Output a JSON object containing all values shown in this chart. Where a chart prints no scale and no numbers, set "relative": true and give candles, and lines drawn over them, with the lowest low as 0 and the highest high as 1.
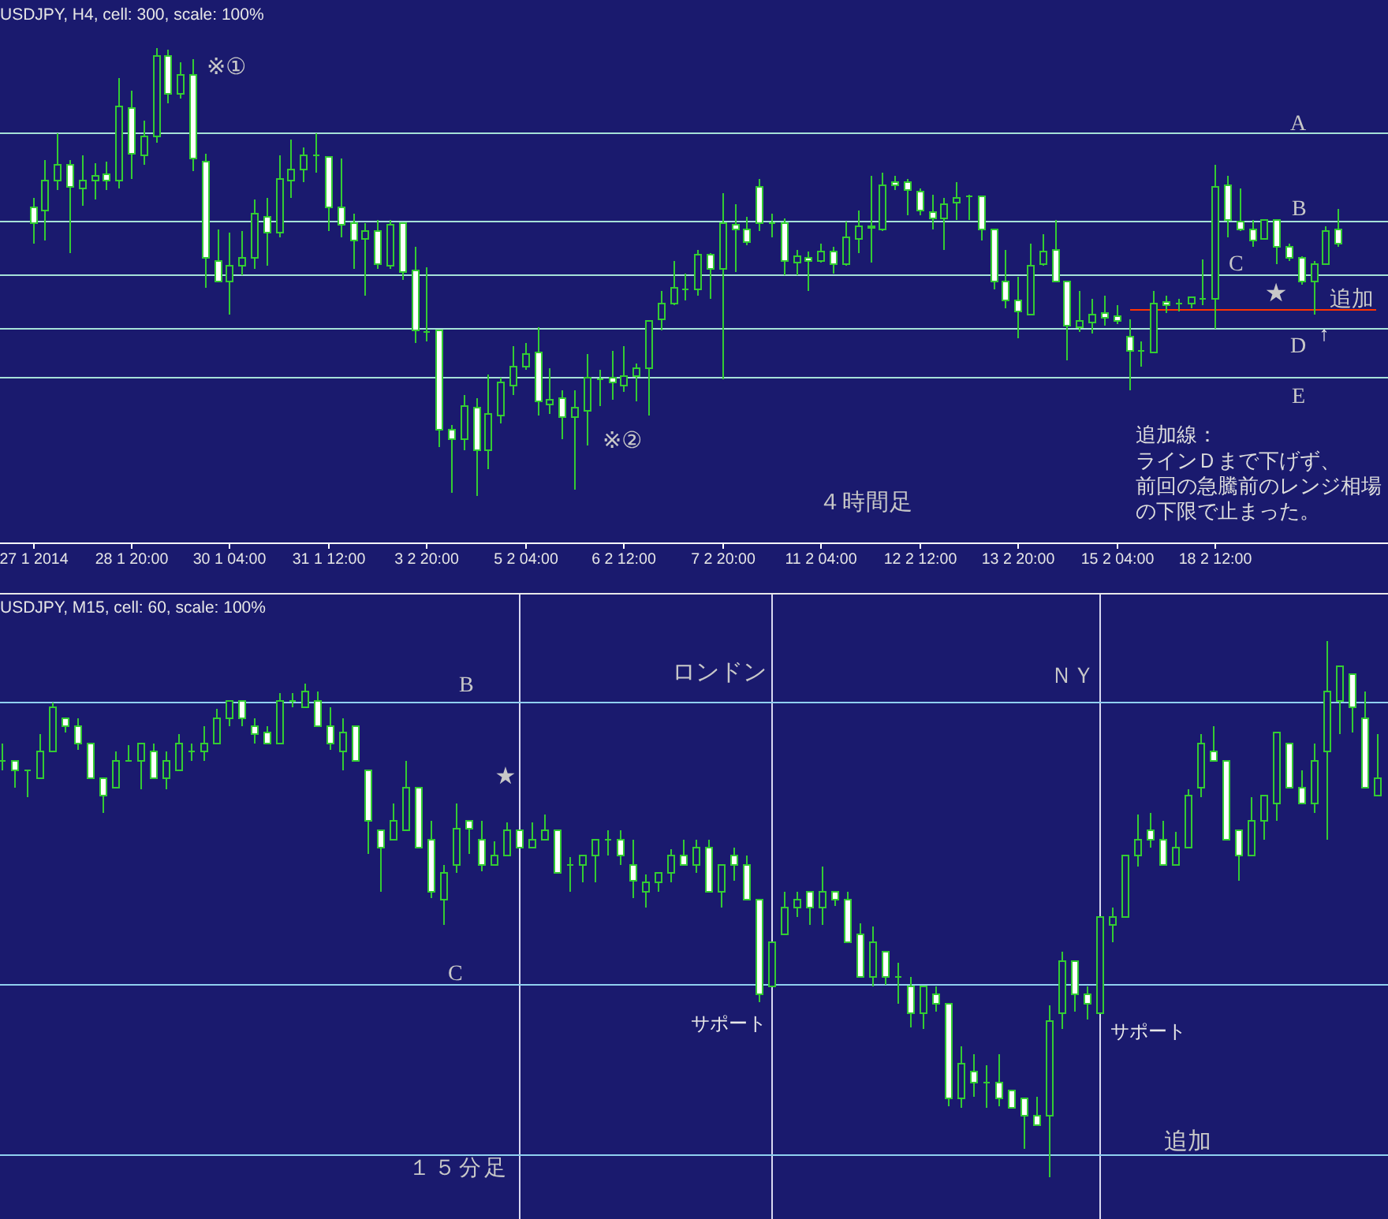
{
  "chart_data": [
    {
      "type": "candlestick",
      "title": "USDJPY, H4, cell: 300, scale: 100%",
      "relative": true,
      "color": "#33cc33",
      "tick_labels": "x",
      "categories": [
        "27 1 2014",
        null,
        null,
        null,
        null,
        null,
        null,
        null,
        "28 1 20:00",
        null,
        null,
        null,
        null,
        null,
        null,
        null,
        "30 1 04:00",
        null,
        null,
        null,
        null,
        null,
        null,
        null,
        "31 1 12:00",
        null,
        null,
        null,
        null,
        null,
        null,
        null,
        "3 2 20:00",
        null,
        null,
        null,
        null,
        null,
        null,
        null,
        "5 2 04:00",
        null,
        null,
        null,
        null,
        null,
        null,
        null,
        "6 2 12:00",
        null,
        null,
        null,
        null,
        null,
        null,
        null,
        "7 2 20:00",
        null,
        null,
        null,
        null,
        null,
        null,
        null,
        "11 2 04:00",
        null,
        null,
        null,
        null,
        null,
        null,
        null,
        "12 2 12:00",
        null,
        null,
        null,
        null,
        null,
        null,
        null,
        "13 2 20:00",
        null,
        null,
        null,
        null,
        null,
        null,
        null,
        "15 2 04:00",
        null,
        null,
        null,
        null,
        null,
        null,
        null,
        "18 2 12:00",
        null,
        null,
        null,
        null,
        null,
        null,
        null,
        null,
        null,
        null,
        null,
        null,
        null
      ],
      "ohlc": [
        [
          0.643,
          0.663,
          0.564,
          0.608
        ],
        [
          0.637,
          0.748,
          0.569,
          0.704
        ],
        [
          0.704,
          0.807,
          0.681,
          0.739
        ],
        [
          0.739,
          0.748,
          0.541,
          0.69
        ],
        [
          0.686,
          0.76,
          0.646,
          0.704
        ],
        [
          0.704,
          0.742,
          0.66,
          0.713
        ],
        [
          0.718,
          0.746,
          0.681,
          0.704
        ],
        [
          0.704,
          0.93,
          0.686,
          0.869
        ],
        [
          0.865,
          0.904,
          0.707,
          0.763
        ],
        [
          0.76,
          0.838,
          0.737,
          0.801
        ],
        [
          0.803,
          1.0,
          0.789,
          0.979
        ],
        [
          0.979,
          0.996,
          0.875,
          0.897
        ],
        [
          0.897,
          0.967,
          0.885,
          0.939
        ],
        [
          0.939,
          0.973,
          0.725,
          0.751
        ],
        [
          0.746,
          0.763,
          0.464,
          0.532
        ],
        [
          0.525,
          0.596,
          0.477,
          0.479
        ],
        [
          0.479,
          0.588,
          0.403,
          0.514
        ],
        [
          0.514,
          0.59,
          0.494,
          0.532
        ],
        [
          0.532,
          0.66,
          0.506,
          0.628
        ],
        [
          0.623,
          0.666,
          0.514,
          0.588
        ],
        [
          0.588,
          0.758,
          0.576,
          0.707
        ],
        [
          0.704,
          0.793,
          0.664,
          0.728
        ],
        [
          0.728,
          0.778,
          0.701,
          0.76
        ],
        [
          0.759,
          0.807,
          0.719,
          0.76
        ],
        [
          0.756,
          0.756,
          0.59,
          0.643
        ],
        [
          0.643,
          0.751,
          0.576,
          0.605
        ],
        [
          0.608,
          0.628,
          0.506,
          0.57
        ],
        [
          0.573,
          0.608,
          0.446,
          0.59
        ],
        [
          0.59,
          0.616,
          0.506,
          0.518
        ],
        [
          0.512,
          0.614,
          0.506,
          0.605
        ],
        [
          0.608,
          0.608,
          0.482,
          0.5
        ],
        [
          0.502,
          0.555,
          0.341,
          0.368
        ],
        [
          0.367,
          0.511,
          0.344,
          0.365
        ],
        [
          0.37,
          0.37,
          0.108,
          0.148
        ],
        [
          0.148,
          0.16,
          0.007,
          0.128
        ],
        [
          0.128,
          0.227,
          0.101,
          0.201
        ],
        [
          0.198,
          0.219,
          0.0,
          0.101
        ],
        [
          0.102,
          0.272,
          0.06,
          0.184
        ],
        [
          0.18,
          0.265,
          0.163,
          0.254
        ],
        [
          0.247,
          0.333,
          0.225,
          0.289
        ],
        [
          0.289,
          0.342,
          0.282,
          0.317
        ],
        [
          0.321,
          0.377,
          0.18,
          0.21
        ],
        [
          0.206,
          0.286,
          0.184,
          0.215
        ],
        [
          0.219,
          0.237,
          0.128,
          0.177
        ],
        [
          0.177,
          0.237,
          0.014,
          0.198
        ],
        [
          0.19,
          0.317,
          0.112,
          0.265
        ],
        [
          0.261,
          0.282,
          0.201,
          0.262
        ],
        [
          0.265,
          0.324,
          0.215,
          0.254
        ],
        [
          0.247,
          0.333,
          0.233,
          0.268
        ],
        [
          0.266,
          0.295,
          0.212,
          0.286
        ],
        [
          0.286,
          0.391,
          0.18,
          0.391
        ],
        [
          0.395,
          0.456,
          0.37,
          0.43
        ],
        [
          0.43,
          0.523,
          0.426,
          0.465
        ],
        [
          0.46,
          0.496,
          0.436,
          0.461
        ],
        [
          0.461,
          0.547,
          0.446,
          0.537
        ],
        [
          0.537,
          0.543,
          0.441,
          0.506
        ],
        [
          0.506,
          0.676,
          0.262,
          0.61
        ],
        [
          0.605,
          0.652,
          0.499,
          0.594
        ],
        [
          0.593,
          0.623,
          0.559,
          0.566
        ],
        [
          0.69,
          0.705,
          0.59,
          0.608
        ],
        [
          0.609,
          0.631,
          0.578,
          0.61
        ],
        [
          0.61,
          0.619,
          0.491,
          0.523
        ],
        [
          0.52,
          0.549,
          0.491,
          0.535
        ],
        [
          0.532,
          0.546,
          0.459,
          0.523
        ],
        [
          0.523,
          0.561,
          0.52,
          0.546
        ],
        [
          0.546,
          0.557,
          0.496,
          0.516
        ],
        [
          0.516,
          0.611,
          0.512,
          0.575
        ],
        [
          0.573,
          0.635,
          0.543,
          0.602
        ],
        [
          0.598,
          0.715,
          0.52,
          0.6
        ],
        [
          0.594,
          0.722,
          0.59,
          0.693
        ],
        [
          0.7,
          0.715,
          0.681,
          0.693
        ],
        [
          0.7,
          0.705,
          0.625,
          0.681
        ],
        [
          0.679,
          0.684,
          0.625,
          0.637
        ],
        [
          0.633,
          0.672,
          0.594,
          0.619
        ],
        [
          0.619,
          0.663,
          0.547,
          0.651
        ],
        [
          0.655,
          0.701,
          0.614,
          0.666
        ],
        [
          0.667,
          0.672,
          0.614,
          0.669
        ],
        [
          0.669,
          0.669,
          0.569,
          0.593
        ],
        [
          0.593,
          0.593,
          0.461,
          0.479
        ],
        [
          0.479,
          0.547,
          0.42,
          0.436
        ],
        [
          0.436,
          0.488,
          0.352,
          0.412
        ],
        [
          0.406,
          0.564,
          0.403,
          0.514
        ],
        [
          0.518,
          0.584,
          0.514,
          0.546
        ],
        [
          0.549,
          0.617,
          0.479,
          0.479
        ],
        [
          0.479,
          0.479,
          0.301,
          0.379
        ],
        [
          0.377,
          0.456,
          0.365,
          0.391
        ],
        [
          0.388,
          0.441,
          0.362,
          0.405
        ],
        [
          0.409,
          0.447,
          0.379,
          0.399
        ],
        [
          0.402,
          0.426,
          0.383,
          0.391
        ],
        [
          0.356,
          0.395,
          0.235,
          0.324
        ],
        [
          0.323,
          0.344,
          0.289,
          0.324
        ],
        [
          0.321,
          0.456,
          0.321,
          0.43
        ],
        [
          0.432,
          0.447,
          0.409,
          0.426
        ],
        [
          0.429,
          0.441,
          0.412,
          0.43
        ],
        [
          0.43,
          0.444,
          0.418,
          0.444
        ],
        [
          0.44,
          0.526,
          0.426,
          0.441
        ],
        [
          0.441,
          0.737,
          0.374,
          0.69
        ],
        [
          0.693,
          0.715,
          0.578,
          0.614
        ],
        [
          0.611,
          0.687,
          0.59,
          0.594
        ],
        [
          0.596,
          0.614,
          0.555,
          0.57
        ],
        [
          0.573,
          0.616,
          0.573,
          0.616
        ],
        [
          0.614,
          0.616,
          0.518,
          0.557
        ],
        [
          0.557,
          0.564,
          0.523,
          0.532
        ],
        [
          0.532,
          0.535,
          0.471,
          0.479
        ],
        [
          0.479,
          0.523,
          0.403,
          0.518
        ],
        [
          0.518,
          0.6,
          0.518,
          0.59
        ],
        [
          0.593,
          0.639,
          0.555,
          0.563
        ],
        null,
        null,
        null
      ],
      "series": [
        {
          "type": "line",
          "color": "#ff3300",
          "values": [
            null,
            null,
            null,
            null,
            null,
            null,
            null,
            null,
            null,
            null,
            null,
            null,
            null,
            null,
            null,
            null,
            null,
            null,
            null,
            null,
            null,
            null,
            null,
            null,
            null,
            null,
            null,
            null,
            null,
            null,
            null,
            null,
            null,
            null,
            null,
            null,
            null,
            null,
            null,
            null,
            null,
            null,
            null,
            null,
            null,
            null,
            null,
            null,
            null,
            null,
            null,
            null,
            null,
            null,
            null,
            null,
            null,
            null,
            null,
            null,
            null,
            null,
            null,
            null,
            null,
            null,
            null,
            null,
            null,
            null,
            null,
            null,
            null,
            null,
            null,
            null,
            null,
            null,
            null,
            null,
            null,
            null,
            null,
            null,
            null,
            null,
            null,
            null,
            null,
            0.416,
            0.416,
            0.416,
            0.416,
            0.416,
            0.416,
            0.416,
            0.416,
            0.416,
            0.416,
            0.416,
            0.416,
            0.416,
            0.416,
            0.416,
            0.416,
            0.416,
            0.416,
            0.416,
            0.416,
            0.416
          ]
        }
      ],
      "ref_lines": [
        {
          "axis": "y",
          "value": 0.809,
          "label": "A",
          "color": "#a6e1d8"
        },
        {
          "axis": "y",
          "value": 0.612,
          "label": "B",
          "color": "#a6e1d8"
        },
        {
          "axis": "y",
          "value": 0.491,
          "label": "C",
          "color": "#a6e1d8"
        },
        {
          "axis": "y",
          "value": 0.374,
          "label": "D",
          "color": "#a6e1d8"
        },
        {
          "axis": "y",
          "value": 0.265,
          "label": "E",
          "color": "#a6e1d8"
        }
      ],
      "annotations": [
        "※①",
        "※②",
        "★",
        "↑",
        "４時間足",
        "追加線：",
        "ラインＤまで下げず、",
        "前回の急騰前のレンジ相場",
        "の下限で止まった。",
        {
          "text": "追加",
          "y": 0.416
        }
      ]
    },
    {
      "type": "candlestick",
      "title": "USDJPY, M15, cell: 60, scale: 100%",
      "relative": true,
      "color": "#33cc33",
      "tick_labels": false,
      "grid": "x",
      "categories": [
        null,
        null,
        null,
        null,
        null,
        null,
        null,
        null,
        null,
        null,
        null,
        null,
        null,
        null,
        null,
        null,
        null,
        null,
        null,
        null,
        null,
        null,
        null,
        null,
        null,
        null,
        null,
        null,
        null,
        null,
        null,
        null,
        null,
        null,
        null,
        null,
        null,
        null,
        null,
        null,
        null,
        null,
        null,
        null,
        null,
        null,
        null,
        null,
        null,
        null,
        null,
        null,
        null,
        null,
        null,
        null,
        null,
        null,
        null,
        null,
        null,
        null,
        null,
        null,
        null,
        null,
        null,
        null,
        null,
        null,
        null,
        null,
        null,
        null,
        null,
        null,
        null,
        null,
        null,
        null,
        null,
        null,
        null,
        null,
        null,
        null,
        null,
        null,
        null,
        null,
        null,
        null,
        null,
        null,
        null,
        null,
        null,
        null,
        null,
        null,
        null,
        null,
        null,
        null,
        null,
        null,
        null,
        null,
        null,
        null
      ],
      "ohlc": [
        [
          0.775,
          0.807,
          0.758,
          0.776
        ],
        [
          0.776,
          0.776,
          0.727,
          0.758
        ],
        [
          0.758,
          0.758,
          0.709,
          0.758
        ],
        [
          0.744,
          0.825,
          0.744,
          0.793
        ],
        [
          0.793,
          0.884,
          0.793,
          0.874
        ],
        [
          0.856,
          0.856,
          0.827,
          0.841
        ],
        [
          0.841,
          0.856,
          0.795,
          0.807
        ],
        [
          0.807,
          0.807,
          0.744,
          0.744
        ],
        [
          0.744,
          0.744,
          0.68,
          0.711
        ],
        [
          0.726,
          0.793,
          0.726,
          0.776
        ],
        [
          0.775,
          0.805,
          0.775,
          0.776
        ],
        [
          0.776,
          0.807,
          0.724,
          0.807
        ],
        [
          0.793,
          0.807,
          0.744,
          0.744
        ],
        [
          0.744,
          0.793,
          0.724,
          0.776
        ],
        [
          0.758,
          0.825,
          0.758,
          0.807
        ],
        [
          0.792,
          0.807,
          0.776,
          0.793
        ],
        [
          0.793,
          0.839,
          0.776,
          0.807
        ],
        [
          0.807,
          0.871,
          0.807,
          0.856
        ],
        [
          0.856,
          0.887,
          0.839,
          0.887
        ],
        [
          0.887,
          0.887,
          0.841,
          0.856
        ],
        [
          0.841,
          0.856,
          0.809,
          0.825
        ],
        [
          0.827,
          0.841,
          0.807,
          0.807
        ],
        [
          0.807,
          0.902,
          0.807,
          0.887
        ],
        [
          0.886,
          0.902,
          0.874,
          0.887
        ],
        [
          0.874,
          0.92,
          0.874,
          0.905
        ],
        [
          0.887,
          0.905,
          0.841,
          0.841
        ],
        [
          0.841,
          0.874,
          0.795,
          0.807
        ],
        [
          0.793,
          0.854,
          0.758,
          0.827
        ],
        [
          0.841,
          0.841,
          0.776,
          0.776
        ],
        [
          0.758,
          0.758,
          0.602,
          0.663
        ],
        [
          0.646,
          0.646,
          0.533,
          0.614
        ],
        [
          0.629,
          0.695,
          0.629,
          0.663
        ],
        [
          0.646,
          0.775,
          0.646,
          0.726
        ],
        [
          0.726,
          0.726,
          0.614,
          0.614
        ],
        [
          0.629,
          0.665,
          0.519,
          0.531
        ],
        [
          0.517,
          0.582,
          0.47,
          0.568
        ],
        [
          0.582,
          0.695,
          0.568,
          0.648
        ],
        [
          0.663,
          0.663,
          0.602,
          0.648
        ],
        [
          0.629,
          0.663,
          0.57,
          0.582
        ],
        [
          0.582,
          0.626,
          0.582,
          0.6
        ],
        [
          0.6,
          0.662,
          0.6,
          0.646
        ],
        [
          0.646,
          0.646,
          0.614,
          0.614
        ],
        [
          0.614,
          0.662,
          0.614,
          0.629
        ],
        [
          0.629,
          0.677,
          0.629,
          0.646
        ],
        [
          0.646,
          0.646,
          0.568,
          0.568
        ],
        [
          0.581,
          0.597,
          0.531,
          0.582
        ],
        [
          0.582,
          0.6,
          0.548,
          0.6
        ],
        [
          0.6,
          0.629,
          0.548,
          0.629
        ],
        [
          0.628,
          0.646,
          0.6,
          0.629
        ],
        [
          0.629,
          0.646,
          0.582,
          0.6
        ],
        [
          0.582,
          0.629,
          0.519,
          0.551
        ],
        [
          0.531,
          0.565,
          0.502,
          0.55
        ],
        [
          0.55,
          0.568,
          0.531,
          0.568
        ],
        [
          0.568,
          0.612,
          0.548,
          0.6
        ],
        [
          0.6,
          0.629,
          0.582,
          0.582
        ],
        [
          0.582,
          0.629,
          0.566,
          0.614
        ],
        [
          0.614,
          0.629,
          0.531,
          0.531
        ],
        [
          0.531,
          0.582,
          0.502,
          0.582
        ],
        [
          0.6,
          0.614,
          0.551,
          0.582
        ],
        [
          0.582,
          0.6,
          0.517,
          0.517
        ],
        [
          0.517,
          0.517,
          0.326,
          0.341
        ],
        [
          0.355,
          0.438,
          0.355,
          0.438
        ],
        [
          0.453,
          0.531,
          0.453,
          0.502
        ],
        [
          0.502,
          0.531,
          0.484,
          0.517
        ],
        [
          0.531,
          0.531,
          0.47,
          0.502
        ],
        [
          0.502,
          0.58,
          0.47,
          0.531
        ],
        [
          0.531,
          0.531,
          0.504,
          0.517
        ],
        [
          0.517,
          0.531,
          0.438,
          0.438
        ],
        [
          0.453,
          0.472,
          0.374,
          0.374
        ],
        [
          0.374,
          0.468,
          0.355,
          0.438
        ],
        [
          0.421,
          0.421,
          0.36,
          0.374
        ],
        [
          0.373,
          0.401,
          0.323,
          0.374
        ],
        [
          0.357,
          0.374,
          0.279,
          0.306
        ],
        [
          0.306,
          0.357,
          0.276,
          0.357
        ],
        [
          0.341,
          0.357,
          0.308,
          0.323
        ],
        [
          0.323,
          0.323,
          0.132,
          0.147
        ],
        [
          0.147,
          0.243,
          0.13,
          0.212
        ],
        [
          0.196,
          0.228,
          0.15,
          0.176
        ],
        [
          0.177,
          0.21,
          0.13,
          0.178
        ],
        [
          0.178,
          0.228,
          0.132,
          0.147
        ],
        [
          0.163,
          0.163,
          0.13,
          0.13
        ],
        [
          0.147,
          0.147,
          0.052,
          0.114
        ],
        [
          0.115,
          0.149,
          0.098,
          0.098
        ],
        [
          0.115,
          0.321,
          0.0,
          0.292
        ],
        [
          0.306,
          0.419,
          0.276,
          0.403
        ],
        [
          0.403,
          0.403,
          0.308,
          0.341
        ],
        [
          0.341,
          0.357,
          0.294,
          0.323
        ],
        [
          0.306,
          0.484,
          0.306,
          0.484
        ],
        [
          0.47,
          0.501,
          0.437,
          0.484
        ],
        [
          0.484,
          0.6,
          0.484,
          0.6
        ],
        [
          0.6,
          0.677,
          0.58,
          0.629
        ],
        [
          0.646,
          0.68,
          0.614,
          0.629
        ],
        [
          0.629,
          0.665,
          0.582,
          0.582
        ],
        [
          0.582,
          0.644,
          0.582,
          0.614
        ],
        [
          0.614,
          0.724,
          0.614,
          0.712
        ],
        [
          0.726,
          0.824,
          0.709,
          0.807
        ],
        [
          0.793,
          0.841,
          0.776,
          0.776
        ],
        [
          0.776,
          0.776,
          0.629,
          0.629
        ],
        [
          0.646,
          0.646,
          0.553,
          0.6
        ],
        [
          0.6,
          0.709,
          0.6,
          0.663
        ],
        [
          0.663,
          0.711,
          0.629,
          0.711
        ],
        [
          0.697,
          0.827,
          0.663,
          0.827
        ],
        [
          0.807,
          0.807,
          0.726,
          0.726
        ],
        [
          0.726,
          0.758,
          0.697,
          0.697
        ],
        [
          0.697,
          0.807,
          0.68,
          0.776
        ],
        [
          0.793,
          1.0,
          0.629,
          0.905
        ],
        [
          0.887,
          0.952,
          0.825,
          0.952
        ],
        [
          0.937,
          0.937,
          0.827,
          0.874
        ],
        [
          0.856,
          0.905,
          0.726,
          0.726
        ],
        [
          0.711,
          0.824,
          0.711,
          0.744
        ]
      ],
      "ref_lines": [
        {
          "axis": "y",
          "value": 0.885,
          "label": "B",
          "color": "#90d0f0"
        },
        {
          "axis": "y",
          "value": 0.359,
          "label": "C",
          "color": "#90d0f0"
        },
        {
          "axis": "y",
          "value": 0.042,
          "label": "追加",
          "color": "#90d0f0"
        }
      ],
      "annotations": [
        "ロンドン",
        "ＮＹ",
        "サポート",
        "サポート",
        "★",
        "１５分足"
      ]
    }
  ]
}
